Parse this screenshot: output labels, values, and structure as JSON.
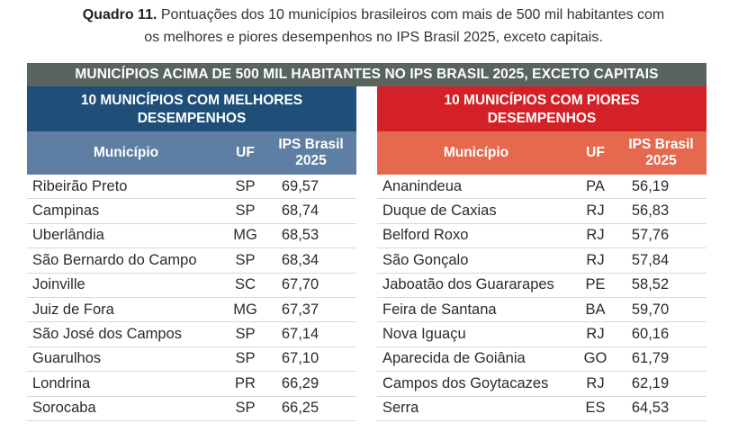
{
  "caption": {
    "lead": "Quadro 11.",
    "line1": " Pontuações dos 10 municípios brasileiros com mais de 500 mil habitantes com",
    "line2": "os melhores e piores desempenhos no IPS Brasil 2025, exceto capitais."
  },
  "table": {
    "title": "MUNICÍPIOS ACIMA DE 500 MIL HABITANTES NO IPS BRASIL 2025, EXCETO CAPITAIS",
    "best": {
      "title_line1": "10 MUNICÍPIOS COM MELHORES",
      "title_line2": "DESEMPENHOS",
      "col_municipio": "Município",
      "col_uf": "UF",
      "col_ips_line1": "IPS Brasil",
      "col_ips_line2": "2025",
      "rows": [
        {
          "municipio": "Ribeirão Preto",
          "uf": "SP",
          "ips": "69,57"
        },
        {
          "municipio": "Campinas",
          "uf": "SP",
          "ips": "68,74"
        },
        {
          "municipio": "Uberlândia",
          "uf": "MG",
          "ips": "68,53"
        },
        {
          "municipio": "São Bernardo do Campo",
          "uf": "SP",
          "ips": "68,34"
        },
        {
          "municipio": "Joinville",
          "uf": "SC",
          "ips": "67,70"
        },
        {
          "municipio": "Juiz de Fora",
          "uf": "MG",
          "ips": "67,37"
        },
        {
          "municipio": "São José dos Campos",
          "uf": "SP",
          "ips": "67,14"
        },
        {
          "municipio": "Guarulhos",
          "uf": "SP",
          "ips": "67,10"
        },
        {
          "municipio": "Londrina",
          "uf": "PR",
          "ips": "66,29"
        },
        {
          "municipio": "Sorocaba",
          "uf": "SP",
          "ips": "66,25"
        }
      ]
    },
    "worst": {
      "title_line1": "10 MUNICÍPIOS COM PIORES",
      "title_line2": "DESEMPENHOS",
      "col_municipio": "Município",
      "col_uf": "UF",
      "col_ips_line1": "IPS Brasil",
      "col_ips_line2": "2025",
      "rows": [
        {
          "municipio": "Ananindeua",
          "uf": "PA",
          "ips": "56,19"
        },
        {
          "municipio": "Duque de Caxias",
          "uf": "RJ",
          "ips": "56,83"
        },
        {
          "municipio": "Belford Roxo",
          "uf": "RJ",
          "ips": "57,76"
        },
        {
          "municipio": "São Gonçalo",
          "uf": "RJ",
          "ips": "57,84"
        },
        {
          "municipio": "Jaboatão dos Guararapes",
          "uf": "PE",
          "ips": "58,52"
        },
        {
          "municipio": "Feira de Santana",
          "uf": "BA",
          "ips": "59,70"
        },
        {
          "municipio": "Nova Iguaçu",
          "uf": "RJ",
          "ips": "60,16"
        },
        {
          "municipio": "Aparecida de Goiânia",
          "uf": "GO",
          "ips": "61,79"
        },
        {
          "municipio": "Campos dos Goytacazes",
          "uf": "RJ",
          "ips": "62,19"
        },
        {
          "municipio": "Serra",
          "uf": "ES",
          "ips": "64,53"
        }
      ]
    }
  }
}
